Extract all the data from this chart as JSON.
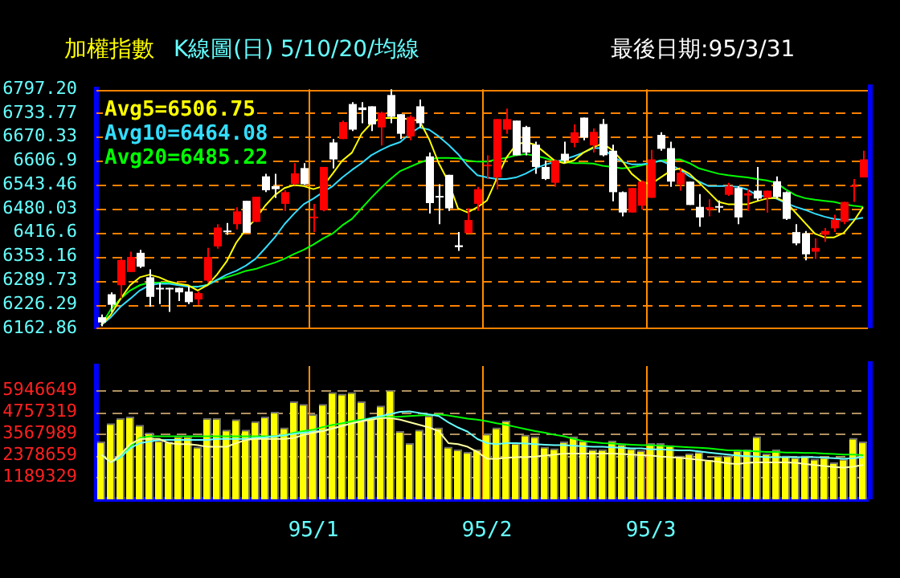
{
  "chart_data": [
    {
      "type": "candlestick",
      "title": "加權指數",
      "subtitle": "K線圖(日) 5/10/20/均線",
      "annotations": [
        "最後日期:95/3/31"
      ],
      "categories": [
        null,
        null,
        null,
        null,
        null,
        null,
        null,
        null,
        null,
        null,
        null,
        null,
        null,
        null,
        null,
        null,
        null,
        null,
        null,
        null,
        null,
        null,
        null,
        null,
        null,
        null,
        null,
        null,
        null,
        null,
        null,
        null,
        null,
        null,
        null,
        null,
        null,
        null,
        null,
        null,
        null,
        null,
        null,
        null,
        null,
        null,
        null,
        null,
        null,
        null,
        null,
        null,
        null,
        null,
        null,
        null,
        null,
        null,
        null,
        null,
        null,
        null,
        null,
        null,
        null,
        null,
        null,
        null,
        null,
        null,
        null,
        null,
        null,
        null,
        null,
        null,
        null,
        null,
        null,
        null
      ],
      "ohlc": [
        [
          6192,
          6199,
          6168,
          6178
        ],
        [
          6253,
          6258,
          6206,
          6225
        ],
        [
          6277,
          6347,
          6242,
          6344
        ],
        [
          6312,
          6366,
          6312,
          6352
        ],
        [
          6363,
          6371,
          6323,
          6326
        ],
        [
          6298,
          6319,
          6220,
          6246
        ],
        [
          6270,
          6284,
          6227,
          6266
        ],
        [
          6270,
          6270,
          6206,
          6266
        ],
        [
          6270,
          6270,
          6235,
          6258
        ],
        [
          6260,
          6274,
          6227,
          6232
        ],
        [
          6239,
          6260,
          6225,
          6256
        ],
        [
          6289,
          6376,
          6284,
          6352
        ],
        [
          6380,
          6439,
          6374,
          6430
        ],
        [
          6422,
          6442,
          6411,
          6419
        ],
        [
          6439,
          6484,
          6425,
          6473
        ],
        [
          6501,
          6501,
          6416,
          6416
        ],
        [
          6445,
          6512,
          6445,
          6512
        ],
        [
          6566,
          6573,
          6524,
          6529
        ],
        [
          6540,
          6573,
          6509,
          6532
        ],
        [
          6493,
          6529,
          6474,
          6524
        ],
        [
          6546,
          6601,
          6543,
          6574
        ],
        [
          6588,
          6601,
          6543,
          6545
        ],
        [
          6456,
          6493,
          6418,
          6459
        ],
        [
          6476,
          6591,
          6473,
          6591
        ],
        [
          6656,
          6665,
          6587,
          6611
        ],
        [
          6665,
          6714,
          6665,
          6710
        ],
        [
          6758,
          6763,
          6686,
          6690
        ],
        [
          6749,
          6763,
          6707,
          6742
        ],
        [
          6752,
          6752,
          6686,
          6704
        ],
        [
          6696,
          6738,
          6648,
          6735
        ],
        [
          6782,
          6797,
          6707,
          6724
        ],
        [
          6731,
          6731,
          6665,
          6679
        ],
        [
          6672,
          6728,
          6662,
          6724
        ],
        [
          6752,
          6770,
          6696,
          6707
        ],
        [
          6619,
          6629,
          6467,
          6495
        ],
        [
          6514,
          6545,
          6439,
          6511
        ],
        [
          6570,
          6570,
          6474,
          6481
        ],
        [
          6383,
          6418,
          6368,
          6378
        ],
        [
          6415,
          6481,
          6415,
          6450
        ],
        [
          6493,
          6538,
          6474,
          6532
        ],
        [
          6593,
          6622,
          6559,
          6597
        ],
        [
          6563,
          6718,
          6531,
          6718
        ],
        [
          6690,
          6746,
          6679,
          6718
        ],
        [
          6714,
          6714,
          6622,
          6622
        ],
        [
          6697,
          6700,
          6622,
          6629
        ],
        [
          6650,
          6658,
          6573,
          6591
        ],
        [
          6591,
          6608,
          6556,
          6559
        ],
        [
          6549,
          6611,
          6538,
          6608
        ],
        [
          6626,
          6658,
          6601,
          6608
        ],
        [
          6655,
          6704,
          6643,
          6683
        ],
        [
          6722,
          6722,
          6662,
          6669
        ],
        [
          6648,
          6693,
          6629,
          6684
        ],
        [
          6705,
          6718,
          6619,
          6622
        ],
        [
          6634,
          6650,
          6500,
          6524
        ],
        [
          6524,
          6526,
          6460,
          6470
        ],
        [
          6470,
          6535,
          6470,
          6535
        ],
        [
          6488,
          6555,
          6478,
          6552
        ],
        [
          6509,
          6636,
          6509,
          6611
        ],
        [
          6676,
          6683,
          6634,
          6639
        ],
        [
          6641,
          6658,
          6538,
          6552
        ],
        [
          6545,
          6587,
          6528,
          6576
        ],
        [
          6552,
          6552,
          6490,
          6490
        ],
        [
          6485,
          6519,
          6432,
          6457
        ],
        [
          6478,
          6505,
          6460,
          6484
        ],
        [
          6487,
          6502,
          6470,
          6484
        ],
        [
          6517,
          6549,
          6514,
          6540
        ],
        [
          6535,
          6540,
          6439,
          6457
        ],
        [
          6515,
          6531,
          6474,
          6521
        ],
        [
          6528,
          6591,
          6502,
          6507
        ],
        [
          6509,
          6528,
          6470,
          6528
        ],
        [
          6553,
          6566,
          6507,
          6511
        ],
        [
          6524,
          6526,
          6450,
          6453
        ],
        [
          6418,
          6439,
          6383,
          6388
        ],
        [
          6415,
          6421,
          6343,
          6359
        ],
        [
          6366,
          6401,
          6347,
          6376
        ],
        [
          6411,
          6429,
          6392,
          6421
        ],
        [
          6428,
          6464,
          6418,
          6450
        ],
        [
          6445,
          6498,
          6439,
          6498
        ],
        [
          6538,
          6559,
          6498,
          6542
        ],
        [
          6563,
          6634,
          6563,
          6611
        ]
      ],
      "colors": [
        "#ffffff",
        "#ffffff",
        "#ff0000",
        "#ff0000",
        "#ffffff",
        "#ffffff",
        "#ffffff",
        "#ffffff",
        "#ffffff",
        "#ffffff",
        "#ff0000",
        "#ff0000",
        "#ff0000",
        "#ffffff",
        "#ff0000",
        "#ffffff",
        "#ff0000",
        "#ffffff",
        "#ffffff",
        "#ff0000",
        "#ff0000",
        "#ffffff",
        "#ff0000",
        "#ff0000",
        "#ffffff",
        "#ff0000",
        "#ffffff",
        "#ffffff",
        "#ffffff",
        "#ff0000",
        "#ffffff",
        "#ffffff",
        "#ff0000",
        "#ffffff",
        "#ffffff",
        "#ffffff",
        "#ffffff",
        "#ffffff",
        "#ff0000",
        "#ff0000",
        "#ff0000",
        "#ff0000",
        "#ff0000",
        "#ffffff",
        "#ffffff",
        "#ffffff",
        "#ffffff",
        "#ff0000",
        "#ffffff",
        "#ff0000",
        "#ffffff",
        "#ff0000",
        "#ffffff",
        "#ffffff",
        "#ffffff",
        "#ff0000",
        "#ff0000",
        "#ff0000",
        "#ffffff",
        "#ffffff",
        "#ff0000",
        "#ffffff",
        "#ffffff",
        "#ff0000",
        "#ffffff",
        "#ff0000",
        "#ffffff",
        "#ff0000",
        "#ffffff",
        "#ff0000",
        "#ffffff",
        "#ffffff",
        "#ffffff",
        "#ffffff",
        "#ff0000",
        "#ff0000",
        "#ff0000",
        "#ff0000",
        "#ff0000",
        "#ff0000"
      ],
      "series": [
        {
          "type": "line",
          "name": "Avg5=6506.75",
          "color": "#ffff00",
          "values": [
            6171,
            6199,
            6241,
            6277,
            6298,
            6305,
            6298,
            6287,
            6281,
            6277,
            6263,
            6277,
            6305,
            6340,
            6390,
            6425,
            6453,
            6488,
            6516,
            6535,
            6543,
            6540,
            6532,
            6540,
            6573,
            6608,
            6629,
            6679,
            6707,
            6721,
            6721,
            6721,
            6717,
            6714,
            6665,
            6601,
            6552,
            6481,
            6470,
            6484,
            6502,
            6559,
            6615,
            6650,
            6657,
            6650,
            6629,
            6608,
            6601,
            6608,
            6629,
            6643,
            6653,
            6636,
            6608,
            6573,
            6552,
            6545,
            6563,
            6580,
            6587,
            6573,
            6549,
            6524,
            6498,
            6492,
            6492,
            6492,
            6500,
            6507,
            6509,
            6498,
            6470,
            6442,
            6414,
            6404,
            6404,
            6416,
            6446,
            6484
          ]
        },
        {
          "type": "line",
          "name": "Avg10=6464.08",
          "color": "#33ddff",
          "values": [
            6171,
            6192,
            6220,
            6241,
            6263,
            6277,
            6281,
            6281,
            6277,
            6273,
            6273,
            6277,
            6291,
            6305,
            6315,
            6329,
            6347,
            6375,
            6404,
            6439,
            6467,
            6492,
            6507,
            6524,
            6540,
            6563,
            6583,
            6601,
            6622,
            6636,
            6648,
            6657,
            6679,
            6696,
            6690,
            6672,
            6650,
            6625,
            6594,
            6569,
            6563,
            6559,
            6559,
            6563,
            6573,
            6587,
            6597,
            6604,
            6611,
            6619,
            6629,
            6641,
            6641,
            6619,
            6605,
            6598,
            6598,
            6601,
            6608,
            6597,
            6584,
            6566,
            6552,
            6540,
            6540,
            6540,
            6538,
            6531,
            6516,
            6512,
            6507,
            6495,
            6485,
            6477,
            6467,
            6459,
            6453,
            6450,
            6452,
            6456
          ]
        },
        {
          "type": "line",
          "name": "Avg20=6485.22",
          "color": "#00ff00",
          "values": [
            6171,
            6213,
            6241,
            6263,
            6277,
            6284,
            6284,
            6284,
            6281,
            6274,
            6273,
            6278,
            6291,
            6298,
            6306,
            6315,
            6320,
            6329,
            6337,
            6347,
            6360,
            6371,
            6385,
            6401,
            6414,
            6436,
            6453,
            6481,
            6509,
            6535,
            6559,
            6580,
            6591,
            6602,
            6611,
            6615,
            6615,
            6614,
            6608,
            6605,
            6605,
            6611,
            6615,
            6622,
            6625,
            6621,
            6615,
            6607,
            6604,
            6601,
            6601,
            6600,
            6594,
            6591,
            6587,
            6590,
            6595,
            6601,
            6608,
            6610,
            6611,
            6601,
            6587,
            6580,
            6573,
            6569,
            6566,
            6563,
            6559,
            6555,
            6549,
            6531,
            6516,
            6508,
            6504,
            6501,
            6498,
            6492,
            6488,
            6485
          ]
        }
      ],
      "ylim": [
        6162.86,
        6797.2
      ],
      "yticks": [
        {
          "value": 6162.86,
          "label": "6162.86"
        },
        6226.29,
        6289.73,
        6353.16,
        6416.6,
        6480.03,
        6543.46,
        6606.9,
        6670.33,
        6733.77,
        {
          "value": 6797.2,
          "label": "6797.20"
        }
      ],
      "grid": true,
      "legend": "top left",
      "tick_labels": "y",
      "marker": "none"
    },
    {
      "type": "bar",
      "categories": [
        null,
        null,
        null,
        null,
        null,
        null,
        null,
        null,
        null,
        null,
        null,
        null,
        null,
        null,
        null,
        null,
        null,
        null,
        null,
        null,
        null,
        null,
        "95/1",
        null,
        null,
        null,
        null,
        null,
        null,
        null,
        null,
        null,
        null,
        null,
        null,
        null,
        null,
        null,
        null,
        null,
        "95/2",
        null,
        null,
        null,
        null,
        null,
        null,
        null,
        null,
        null,
        null,
        null,
        null,
        null,
        null,
        null,
        null,
        "95/3",
        null,
        null,
        null,
        null,
        null,
        null,
        null,
        null,
        null,
        null,
        null,
        null,
        null,
        null,
        null,
        null,
        null,
        null,
        null,
        null,
        null,
        null
      ],
      "series": [
        {
          "type": "bar",
          "color": "#ffff00",
          "values": [
            3143000,
            4134000,
            4417000,
            4502000,
            4049000,
            3625000,
            3200000,
            3143000,
            3426000,
            3426000,
            2860000,
            4417000,
            4417000,
            3794000,
            4361000,
            3794000,
            4248000,
            4502000,
            4757000,
            3908000,
            5324000,
            5182000,
            4644000,
            5182000,
            5833000,
            5748000,
            5833000,
            5324000,
            4417000,
            5097000,
            5947000,
            3710000,
            3058000,
            3794000,
            4559000,
            3908000,
            2860000,
            2718000,
            2577000,
            2718000,
            3568000,
            3908000,
            4276000,
            3058000,
            3511000,
            3426000,
            2860000,
            2775000,
            3143000,
            3426000,
            3200000,
            2718000,
            2718000,
            3200000,
            3002000,
            2775000,
            2662000,
            3058000,
            3058000,
            2945000,
            2379000,
            2492000,
            2577000,
            2152000,
            2379000,
            2379000,
            2662000,
            2718000,
            3426000,
            2492000,
            2718000,
            2379000,
            2294000,
            2379000,
            2209000,
            2294000,
            2011000,
            2209000,
            3341000,
            3143000
          ]
        },
        {
          "type": "line",
          "color": "#ffffa0",
          "values": [
            2435000,
            2011000,
            2435000,
            3002000,
            3285000,
            3285000,
            3285000,
            3058000,
            3002000,
            3002000,
            2945000,
            2860000,
            2860000,
            2860000,
            3058000,
            3228000,
            3285000,
            3285000,
            3285000,
            3285000,
            3341000,
            3511000,
            3625000,
            3710000,
            3851000,
            3993000,
            4134000,
            4248000,
            4333000,
            4417000,
            4417000,
            4333000,
            4191000,
            4049000,
            3908000,
            3710000,
            3058000,
            3002000,
            2860000,
            2577000,
            2209000,
            2209000,
            2265000,
            2294000,
            2294000,
            2322000,
            2379000,
            2435000,
            2492000,
            2492000,
            2492000,
            2492000,
            2492000,
            2492000,
            2464000,
            2435000,
            2407000,
            2379000,
            2322000,
            2294000,
            2265000,
            2209000,
            2152000,
            2095000,
            2039000,
            1954000,
            1926000,
            1982000,
            2011000,
            2011000,
            2011000,
            2011000,
            1982000,
            1926000,
            1869000,
            1812000,
            1756000,
            1727000,
            1784000,
            1869000
          ]
        },
        {
          "type": "line",
          "color": "#66ffff",
          "values": [
            2435000,
            2011000,
            2294000,
            2775000,
            3058000,
            3143000,
            3228000,
            3228000,
            3228000,
            3228000,
            3228000,
            3228000,
            3285000,
            3285000,
            3285000,
            3285000,
            3341000,
            3370000,
            3426000,
            3483000,
            3568000,
            3625000,
            3681000,
            3738000,
            3851000,
            3993000,
            4134000,
            4276000,
            4417000,
            4531000,
            4644000,
            4757000,
            4786000,
            4701000,
            4616000,
            4531000,
            4191000,
            3908000,
            3681000,
            3285000,
            3058000,
            3002000,
            3058000,
            3058000,
            3030000,
            3002000,
            2973000,
            2945000,
            2945000,
            2917000,
            2888000,
            2860000,
            2860000,
            2832000,
            2803000,
            2775000,
            2775000,
            2718000,
            2718000,
            2690000,
            2662000,
            2662000,
            2605000,
            2549000,
            2492000,
            2435000,
            2379000,
            2350000,
            2322000,
            2294000,
            2294000,
            2294000,
            2294000,
            2294000,
            2294000,
            2265000,
            2237000,
            2209000,
            2237000,
            2294000
          ]
        },
        {
          "type": "line",
          "color": "#00ff00",
          "values": [
            2435000,
            2011000,
            2294000,
            2860000,
            3341000,
            3426000,
            3426000,
            3426000,
            3426000,
            3426000,
            3426000,
            3426000,
            3426000,
            3426000,
            3426000,
            3426000,
            3426000,
            3426000,
            3426000,
            3483000,
            3625000,
            3710000,
            3794000,
            3936000,
            4049000,
            4134000,
            4248000,
            4333000,
            4417000,
            4474000,
            4474000,
            4502000,
            4531000,
            4559000,
            4587000,
            4616000,
            4559000,
            4474000,
            4389000,
            4333000,
            4248000,
            4134000,
            4049000,
            3936000,
            3823000,
            3710000,
            3625000,
            3511000,
            3426000,
            3285000,
            3171000,
            3115000,
            3058000,
            3030000,
            3002000,
            2973000,
            2945000,
            2945000,
            2917000,
            2888000,
            2860000,
            2832000,
            2803000,
            2775000,
            2718000,
            2662000,
            2662000,
            2633000,
            2605000,
            2577000,
            2577000,
            2549000,
            2549000,
            2520000,
            2520000,
            2492000,
            2464000,
            2435000,
            2435000,
            2407000
          ]
        }
      ],
      "ylim": [
        0,
        7250000
      ],
      "yticks": [
        1189329,
        2378659,
        3567989,
        4757319,
        5946649
      ],
      "grid": true,
      "marker": "none"
    }
  ]
}
